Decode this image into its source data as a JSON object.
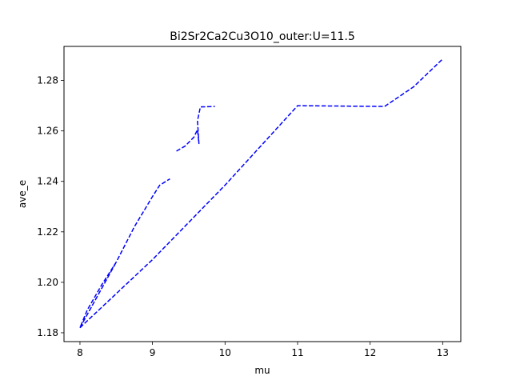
{
  "chart_data": {
    "type": "line",
    "title": "Bi2Sr2Ca2Cu3O10_outer:U=11.5",
    "xlabel": "mu",
    "ylabel": "ave_e",
    "xlim": [
      7.78,
      13.25
    ],
    "ylim": [
      1.1765,
      1.2935
    ],
    "xticks": [
      8,
      9,
      10,
      11,
      12,
      13
    ],
    "xtick_labels": [
      "8",
      "9",
      "10",
      "11",
      "12",
      "13"
    ],
    "yticks": [
      1.18,
      1.2,
      1.22,
      1.24,
      1.26,
      1.28
    ],
    "ytick_labels": [
      "1.18",
      "1.20",
      "1.22",
      "1.24",
      "1.26",
      "1.28"
    ],
    "grid": false,
    "series": [
      {
        "color": "#0000ff",
        "line_style": "dashed",
        "segments": [
          [
            [
              8.0,
              1.182
            ],
            [
              8.5,
              1.208
            ],
            [
              8.0,
              1.182
            ],
            [
              8.1,
              1.189
            ],
            [
              8.3,
              1.199
            ],
            [
              8.5,
              1.208
            ],
            [
              8.75,
              1.222
            ],
            [
              9.0,
              1.234
            ],
            [
              9.1,
              1.2385
            ],
            [
              9.24,
              1.241
            ]
          ],
          [
            [
              9.33,
              1.252
            ],
            [
              9.45,
              1.254
            ],
            [
              9.57,
              1.2575
            ],
            [
              9.62,
              1.2605
            ],
            [
              9.64,
              1.255
            ],
            [
              9.62,
              1.264
            ],
            [
              9.66,
              1.2695
            ],
            [
              9.86,
              1.2697
            ]
          ],
          [
            [
              8.0,
              1.182
            ],
            [
              9.0,
              1.209
            ],
            [
              10.0,
              1.2385
            ],
            [
              11.0,
              1.27
            ],
            [
              12.2,
              1.2697
            ],
            [
              12.6,
              1.2775
            ],
            [
              13.0,
              1.2885
            ]
          ]
        ]
      }
    ]
  }
}
